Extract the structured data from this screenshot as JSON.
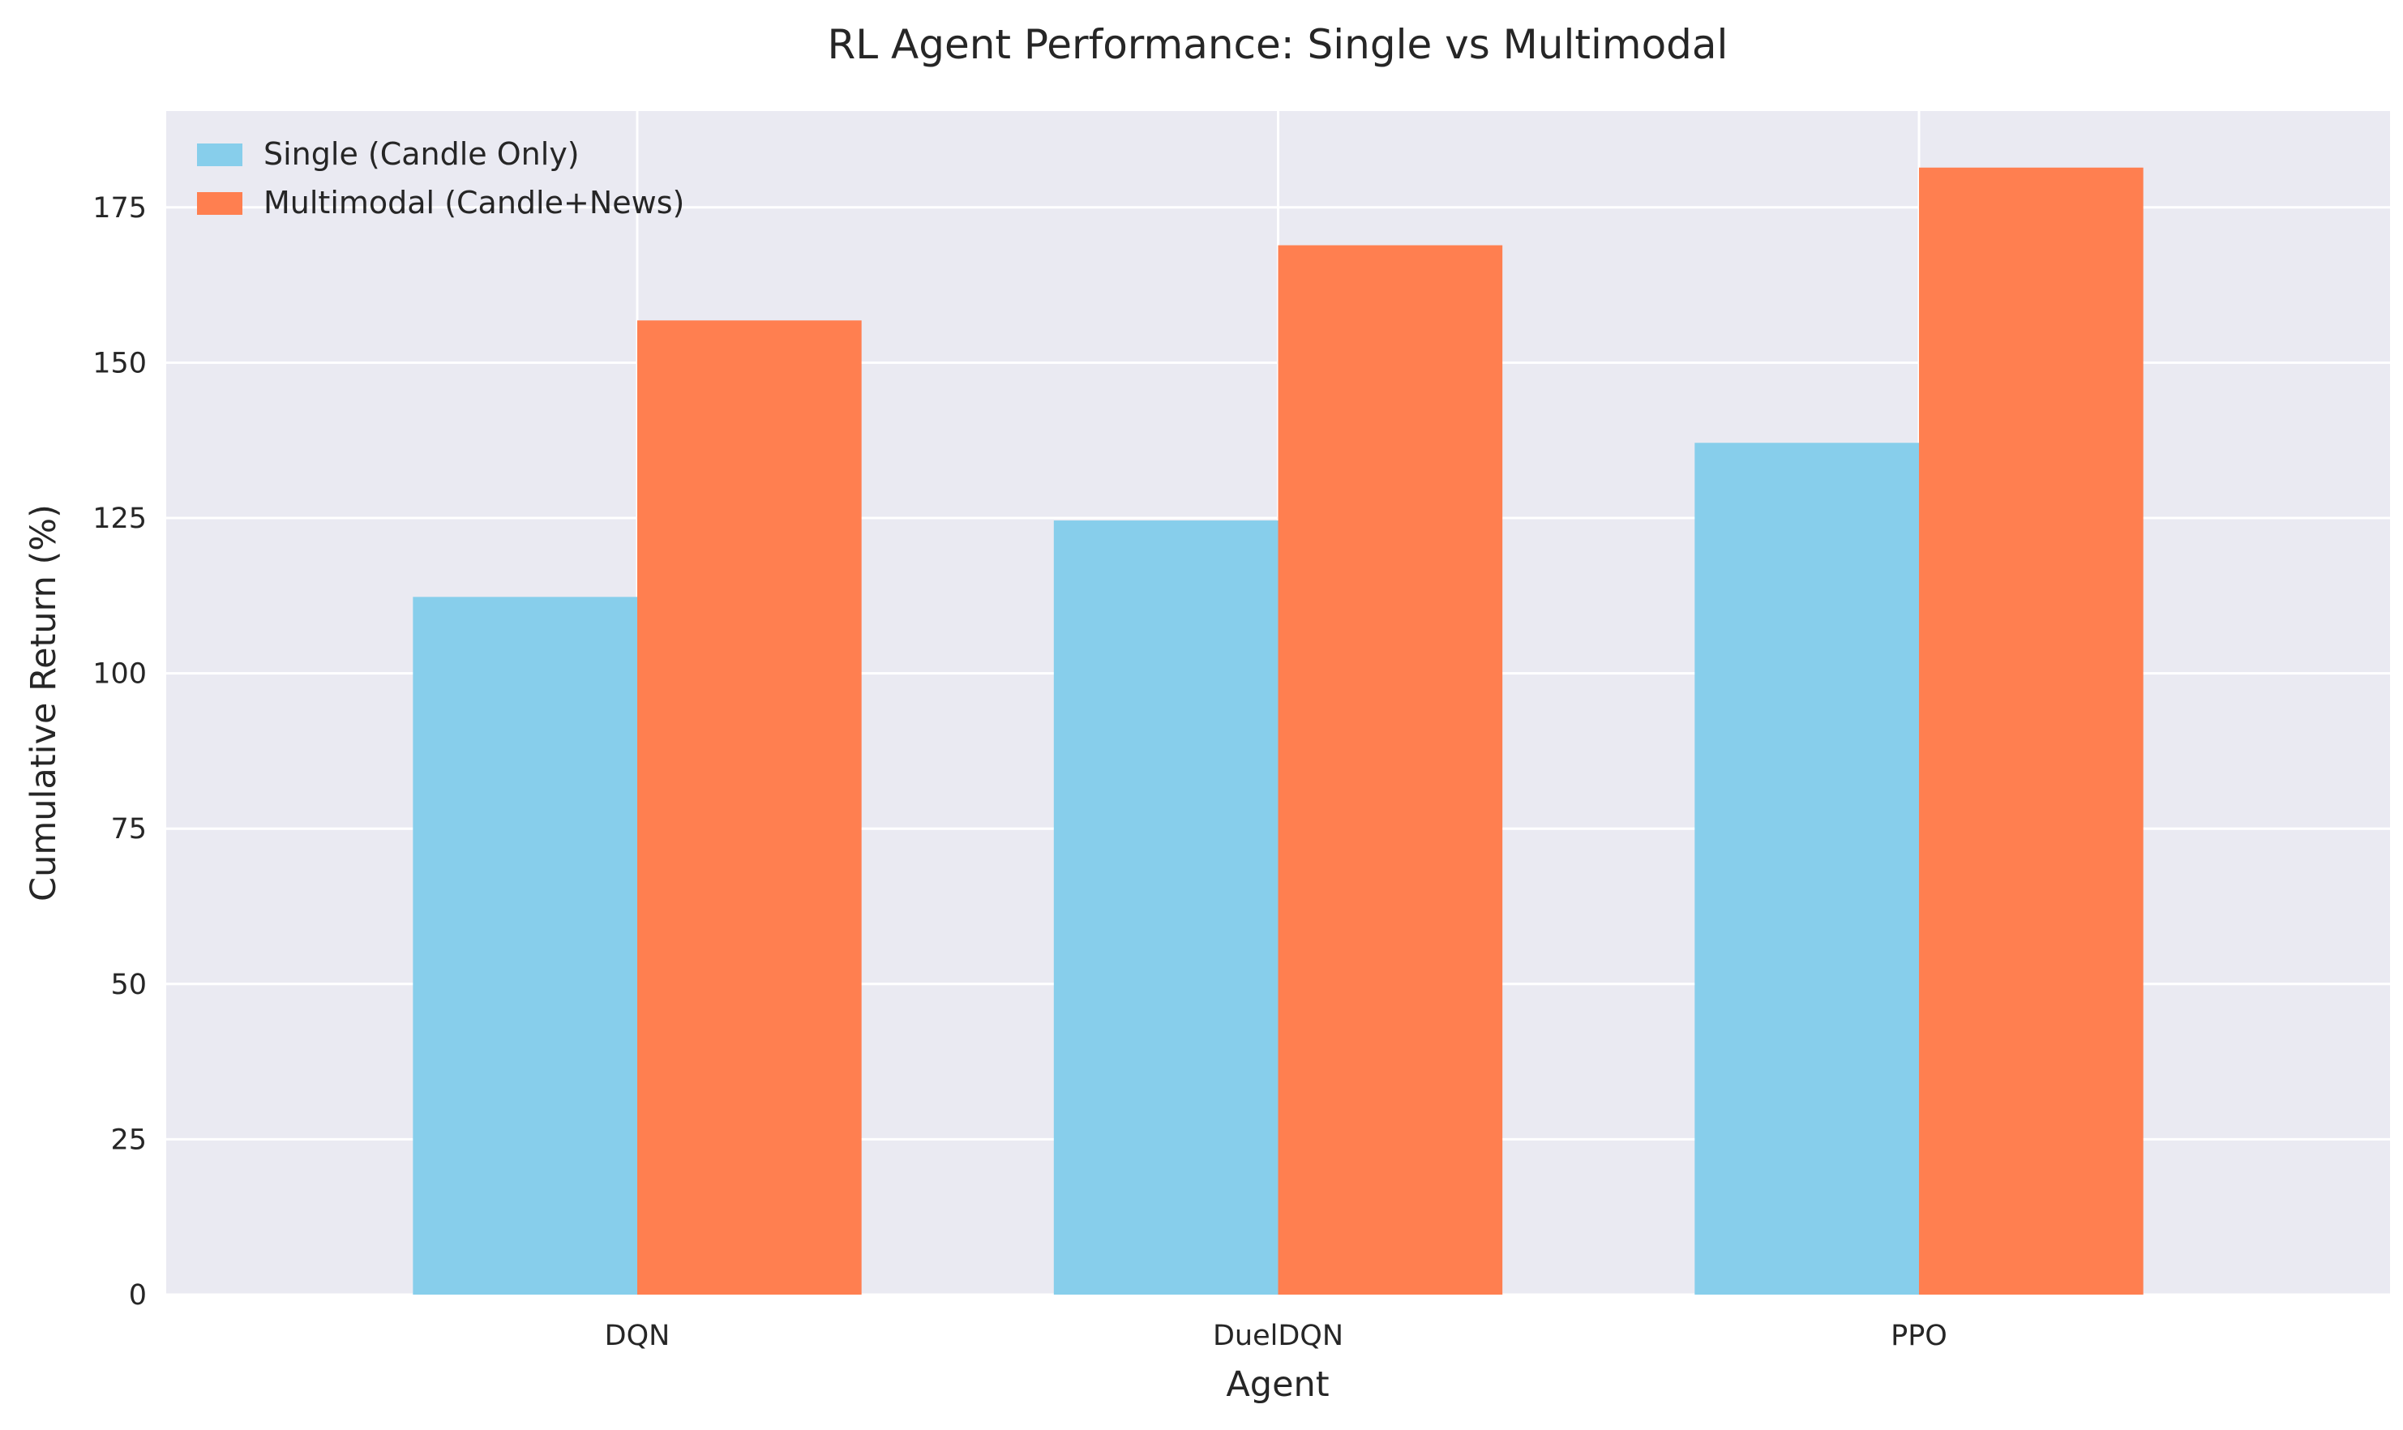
{
  "chart_data": {
    "type": "bar",
    "title": "RL Agent Performance: Single vs Multimodal",
    "xlabel": "Agent",
    "ylabel": "Cumulative Return (%)",
    "categories": [
      "DQN",
      "DuelDQN",
      "PPO"
    ],
    "series": [
      {
        "name": "Single (Candle Only)",
        "values": [
          112.3,
          124.6,
          137.1
        ],
        "color": "#87CEEB"
      },
      {
        "name": "Multimodal (Candle+News)",
        "values": [
          156.8,
          168.9,
          181.4
        ],
        "color": "#FF7F50"
      }
    ],
    "ylim": [
      0,
      190.5
    ],
    "yticks": [
      0,
      25,
      50,
      75,
      100,
      125,
      150,
      175
    ],
    "grid": true,
    "legend_position": "top-left",
    "background_color": "#EAEAF2",
    "grid_color": "#FFFFFF"
  }
}
